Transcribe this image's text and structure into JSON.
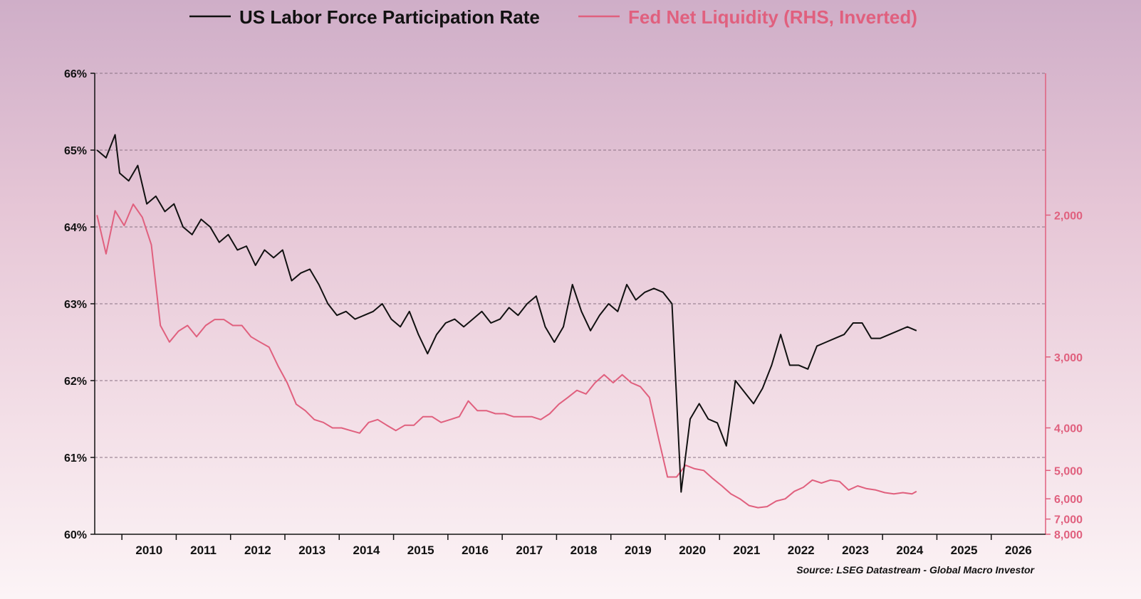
{
  "chart_data": {
    "type": "line",
    "legend_placement": "top-center",
    "source": "Source: LSEG Datastream - Global Macro Investor",
    "colors": {
      "lfpr": "#111111",
      "liquidity": "#e0607e",
      "grid": "#8a7284"
    },
    "x_ticks": [
      "2010",
      "2011",
      "2012",
      "2013",
      "2014",
      "2015",
      "2016",
      "2017",
      "2018",
      "2019",
      "2020",
      "2021",
      "2022",
      "2023",
      "2024",
      "2025",
      "2026"
    ],
    "x_range": [
      "2009-07",
      "2026-12"
    ],
    "y_left": {
      "ticks": [
        "60%",
        "61%",
        "62%",
        "63%",
        "64%",
        "65%",
        "66%"
      ],
      "ylim": [
        60,
        66
      ]
    },
    "y_right": {
      "ticks": [
        "2,000",
        "3,000",
        "4,000",
        "5,000",
        "6,000",
        "7,000",
        "8,000"
      ],
      "inverted": true,
      "scale": "reciprocal",
      "ylim": [
        1500,
        8000
      ]
    },
    "series": [
      {
        "name": "US Labor Force Participation Rate",
        "axis": "left",
        "x": [
          "2009-07",
          "2009-09",
          "2009-11",
          "2009-12",
          "2010-02",
          "2010-04",
          "2010-06",
          "2010-08",
          "2010-10",
          "2010-12",
          "2011-02",
          "2011-04",
          "2011-06",
          "2011-08",
          "2011-10",
          "2011-12",
          "2012-02",
          "2012-04",
          "2012-06",
          "2012-08",
          "2012-10",
          "2012-12",
          "2013-02",
          "2013-04",
          "2013-06",
          "2013-08",
          "2013-10",
          "2013-12",
          "2014-02",
          "2014-04",
          "2014-06",
          "2014-08",
          "2014-10",
          "2014-12",
          "2015-02",
          "2015-04",
          "2015-06",
          "2015-08",
          "2015-10",
          "2015-12",
          "2016-02",
          "2016-04",
          "2016-06",
          "2016-08",
          "2016-10",
          "2016-12",
          "2017-02",
          "2017-04",
          "2017-06",
          "2017-08",
          "2017-10",
          "2017-12",
          "2018-02",
          "2018-04",
          "2018-06",
          "2018-08",
          "2018-10",
          "2018-12",
          "2019-02",
          "2019-04",
          "2019-06",
          "2019-08",
          "2019-10",
          "2019-12",
          "2020-02",
          "2020-04",
          "2020-06",
          "2020-08",
          "2020-10",
          "2020-12",
          "2021-02",
          "2021-04",
          "2021-06",
          "2021-08",
          "2021-10",
          "2021-12",
          "2022-02",
          "2022-04",
          "2022-06",
          "2022-08",
          "2022-10",
          "2022-12",
          "2023-02",
          "2023-04",
          "2023-06",
          "2023-08",
          "2023-10",
          "2023-12",
          "2024-02",
          "2024-04",
          "2024-06",
          "2024-08"
        ],
        "values": [
          65.0,
          64.9,
          65.2,
          64.7,
          64.6,
          64.8,
          64.3,
          64.4,
          64.2,
          64.3,
          64.0,
          63.9,
          64.1,
          64.0,
          63.8,
          63.9,
          63.7,
          63.75,
          63.5,
          63.7,
          63.6,
          63.7,
          63.3,
          63.4,
          63.45,
          63.25,
          63.0,
          62.85,
          62.9,
          62.8,
          62.85,
          62.9,
          63.0,
          62.8,
          62.7,
          62.9,
          62.6,
          62.35,
          62.6,
          62.75,
          62.8,
          62.7,
          62.8,
          62.9,
          62.75,
          62.8,
          62.95,
          62.85,
          63.0,
          63.1,
          62.7,
          62.5,
          62.7,
          63.25,
          62.9,
          62.65,
          62.85,
          63.0,
          62.9,
          63.25,
          63.05,
          63.15,
          63.2,
          63.15,
          63.0,
          60.55,
          61.5,
          61.7,
          61.5,
          61.45,
          61.15,
          62.0,
          61.85,
          61.7,
          61.9,
          62.2,
          62.6,
          62.2,
          62.2,
          62.15,
          62.45,
          62.5,
          62.55,
          62.6,
          62.75,
          62.75,
          62.55,
          62.55,
          62.6,
          62.65,
          62.7,
          62.65
        ]
      },
      {
        "name": "Fed Net Liquidity (RHS, Inverted)",
        "axis": "right",
        "x": [
          "2009-07",
          "2009-09",
          "2009-11",
          "2010-01",
          "2010-03",
          "2010-05",
          "2010-07",
          "2010-09",
          "2010-11",
          "2011-01",
          "2011-03",
          "2011-05",
          "2011-07",
          "2011-09",
          "2011-11",
          "2012-01",
          "2012-03",
          "2012-05",
          "2012-07",
          "2012-09",
          "2012-11",
          "2013-01",
          "2013-03",
          "2013-05",
          "2013-07",
          "2013-09",
          "2013-11",
          "2014-01",
          "2014-03",
          "2014-05",
          "2014-07",
          "2014-09",
          "2014-11",
          "2015-01",
          "2015-03",
          "2015-05",
          "2015-07",
          "2015-09",
          "2015-11",
          "2016-01",
          "2016-03",
          "2016-05",
          "2016-07",
          "2016-09",
          "2016-11",
          "2017-01",
          "2017-03",
          "2017-05",
          "2017-07",
          "2017-09",
          "2017-11",
          "2018-01",
          "2018-03",
          "2018-05",
          "2018-07",
          "2018-09",
          "2018-11",
          "2019-01",
          "2019-03",
          "2019-05",
          "2019-07",
          "2019-09",
          "2019-11",
          "2020-01",
          "2020-03",
          "2020-05",
          "2020-07",
          "2020-09",
          "2020-11",
          "2021-01",
          "2021-03",
          "2021-05",
          "2021-07",
          "2021-09",
          "2021-11",
          "2022-01",
          "2022-03",
          "2022-05",
          "2022-07",
          "2022-09",
          "2022-11",
          "2023-01",
          "2023-03",
          "2023-05",
          "2023-07",
          "2023-09",
          "2023-11",
          "2024-01",
          "2024-03",
          "2024-05",
          "2024-07",
          "2024-08"
        ],
        "values": [
          2000,
          2200,
          1980,
          2050,
          1950,
          2010,
          2150,
          2700,
          2850,
          2750,
          2700,
          2800,
          2700,
          2650,
          2650,
          2700,
          2700,
          2800,
          2850,
          2900,
          3100,
          3300,
          3600,
          3700,
          3850,
          3900,
          4000,
          4000,
          4050,
          4100,
          3900,
          3850,
          3950,
          4050,
          3950,
          3950,
          3800,
          3800,
          3900,
          3850,
          3800,
          3550,
          3700,
          3700,
          3750,
          3750,
          3800,
          3800,
          3800,
          3850,
          3750,
          3600,
          3500,
          3400,
          3450,
          3300,
          3200,
          3300,
          3200,
          3300,
          3350,
          3500,
          4200,
          5200,
          5200,
          4850,
          4950,
          5000,
          5250,
          5500,
          5800,
          6000,
          6300,
          6400,
          6350,
          6100,
          6000,
          5700,
          5550,
          5300,
          5400,
          5300,
          5350,
          5650,
          5500,
          5600,
          5650,
          5750,
          5800,
          5750,
          5800,
          5700
        ]
      }
    ]
  }
}
